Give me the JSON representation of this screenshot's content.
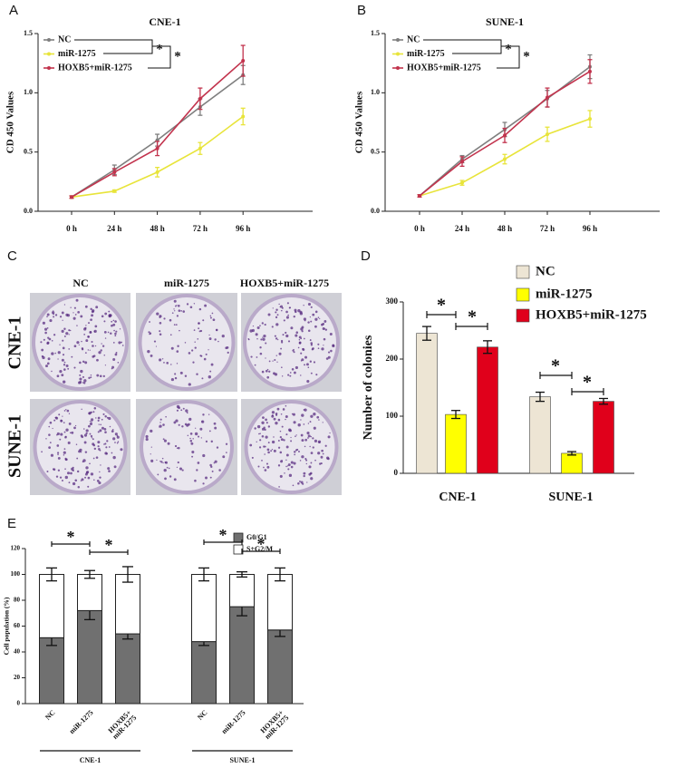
{
  "panel_labels": [
    "A",
    "B",
    "C",
    "D",
    "E"
  ],
  "colony_photos": {
    "columns": [
      "NC",
      "miR-1275",
      "HOXB5+miR-1275"
    ],
    "rows": [
      "CNE-1",
      "SUNE-1"
    ]
  },
  "chart_data": [
    {
      "type": "line",
      "title": "CNE-1",
      "y_label": "CD 450 Values",
      "categories": [
        "0 h",
        "24 h",
        "48 h",
        "72 h",
        "96 h"
      ],
      "ylim": [
        0,
        1.5
      ],
      "yticks": [
        {
          "value": 0,
          "label": "0.0"
        },
        0.5,
        {
          "value": 1,
          "label": "1.0"
        },
        1.5
      ],
      "series": [
        {
          "name": "NC",
          "color": "#7f7f7f",
          "values": [
            0.12,
            0.35,
            0.6,
            0.88,
            1.15
          ],
          "errors": [
            0.01,
            0.04,
            0.05,
            0.07,
            0.08
          ]
        },
        {
          "name": "miR-1275",
          "color": "#e8e43a",
          "values": [
            0.12,
            0.17,
            0.33,
            0.53,
            0.8
          ],
          "errors": [
            0.01,
            0.01,
            0.04,
            0.05,
            0.07
          ]
        },
        {
          "name": "HOXB5+miR-1275",
          "color": "#c2334d",
          "values": [
            0.12,
            0.33,
            0.53,
            0.95,
            1.27
          ],
          "errors": [
            0.01,
            0.03,
            0.06,
            0.09,
            0.13
          ]
        }
      ],
      "annotations": [
        "*",
        "*"
      ]
    },
    {
      "type": "line",
      "title": "SUNE-1",
      "y_label": "CD 450 Values",
      "categories": [
        "0 h",
        "24 h",
        "48 h",
        "72 h",
        "96 h"
      ],
      "ylim": [
        0,
        1.5
      ],
      "yticks": [
        {
          "value": 0,
          "label": "0.0"
        },
        0.5,
        {
          "value": 1,
          "label": "1.0"
        },
        1.5
      ],
      "series": [
        {
          "name": "NC",
          "color": "#7f7f7f",
          "values": [
            0.13,
            0.44,
            0.69,
            0.95,
            1.22
          ],
          "errors": [
            0.01,
            0.03,
            0.06,
            0.07,
            0.1
          ]
        },
        {
          "name": "miR-1275",
          "color": "#e8e43a",
          "values": [
            0.13,
            0.24,
            0.44,
            0.65,
            0.78
          ],
          "errors": [
            0.01,
            0.02,
            0.04,
            0.06,
            0.07
          ]
        },
        {
          "name": "HOXB5+miR-1275",
          "color": "#c2334d",
          "values": [
            0.13,
            0.42,
            0.64,
            0.96,
            1.18
          ],
          "errors": [
            0.01,
            0.04,
            0.06,
            0.08,
            0.1
          ]
        }
      ],
      "annotations": [
        "*",
        "*"
      ]
    },
    {
      "type": "bar",
      "y_label": "Number of colonies",
      "categories": [
        "CNE-1",
        "SUNE-1"
      ],
      "ylim": [
        0,
        300
      ],
      "yticks": [
        0,
        100,
        200,
        300
      ],
      "series": [
        {
          "name": "NC",
          "color": "#ede5d4",
          "values": [
            245,
            134
          ],
          "errors": [
            12,
            8
          ]
        },
        {
          "name": "miR-1275",
          "color": "#ffff00",
          "values": [
            103,
            35
          ],
          "errors": [
            7,
            3
          ]
        },
        {
          "name": "HOXB5+miR-1275",
          "color": "#e0001b",
          "values": [
            221,
            126
          ],
          "errors": [
            11,
            5
          ]
        }
      ],
      "annotations": [
        "*",
        "*",
        "*",
        "*"
      ]
    },
    {
      "type": "stacked_bar",
      "y_label": "Cell population (%)",
      "categories": [
        "NC",
        "miR-1275",
        "HOXB5+\nmiR-1275",
        "NC",
        "miR-1275",
        "HOXB5+\nmiR-1275"
      ],
      "groups": [
        "CNE-1",
        "SUNE-1"
      ],
      "ylim": [
        0,
        120
      ],
      "yticks": [
        0,
        20,
        40,
        60,
        80,
        100,
        120
      ],
      "series": [
        {
          "name": "G0/G1",
          "color": "#707070",
          "values": [
            51,
            72,
            54,
            48,
            75,
            57
          ],
          "errors": [
            6,
            7,
            4,
            3,
            7,
            5
          ]
        },
        {
          "name": "S+G2/M",
          "color": "#ffffff",
          "values": [
            49,
            28,
            46,
            52,
            25,
            43
          ],
          "errors": [
            5,
            3,
            6,
            5,
            2,
            5
          ]
        }
      ],
      "annotations": [
        "*",
        "*",
        "*",
        "*"
      ]
    }
  ]
}
